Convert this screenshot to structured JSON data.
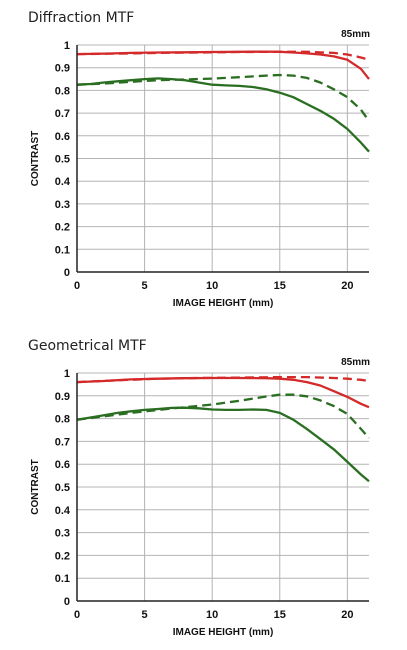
{
  "colors": {
    "sagittal_red": "#d42a2a",
    "meridional_green": "#2a6e22",
    "grid": "#b4b4b4",
    "frame": "#222222"
  },
  "chart_data": [
    {
      "type": "line",
      "title": "Diffraction MTF",
      "focal_length": "85mm",
      "xlabel": "IMAGE HEIGHT (mm)",
      "ylabel": "CONTRAST",
      "xlim": [
        0,
        21.6
      ],
      "ylim": [
        0,
        1
      ],
      "x_ticks": [
        "0",
        "5",
        "10",
        "15",
        "20"
      ],
      "y_ticks": [
        "0",
        "0.1",
        "0.2",
        "0.3",
        "0.4",
        "0.5",
        "0.6",
        "0.7",
        "0.8",
        "0.9",
        "1"
      ],
      "grid": true,
      "series": [
        {
          "color": "red",
          "style": "solid",
          "x": [
            0,
            2,
            4,
            6,
            8,
            10,
            12,
            14,
            15,
            16,
            17,
            18,
            19,
            20,
            21,
            21.6
          ],
          "y": [
            0.96,
            0.962,
            0.965,
            0.967,
            0.968,
            0.969,
            0.97,
            0.971,
            0.97,
            0.967,
            0.963,
            0.958,
            0.95,
            0.935,
            0.895,
            0.85
          ]
        },
        {
          "color": "red",
          "style": "dashed",
          "x": [
            0,
            3,
            6,
            9,
            12,
            15,
            17,
            19,
            20,
            21,
            21.6
          ],
          "y": [
            0.96,
            0.962,
            0.965,
            0.967,
            0.969,
            0.97,
            0.97,
            0.965,
            0.958,
            0.945,
            0.935
          ]
        },
        {
          "color": "green",
          "style": "solid",
          "x": [
            0,
            1,
            2,
            3,
            4,
            5,
            6,
            7,
            8,
            9,
            10,
            11,
            12,
            13,
            14,
            15,
            16,
            17,
            18,
            19,
            20,
            21,
            21.6
          ],
          "y": [
            0.825,
            0.828,
            0.835,
            0.84,
            0.845,
            0.85,
            0.853,
            0.85,
            0.845,
            0.835,
            0.825,
            0.822,
            0.82,
            0.815,
            0.805,
            0.79,
            0.77,
            0.74,
            0.71,
            0.675,
            0.63,
            0.57,
            0.53
          ]
        },
        {
          "color": "green",
          "style": "dashed",
          "x": [
            0,
            2,
            4,
            6,
            8,
            10,
            12,
            14,
            15,
            16,
            17,
            18,
            19,
            20,
            21,
            21.6
          ],
          "y": [
            0.825,
            0.83,
            0.838,
            0.845,
            0.848,
            0.852,
            0.858,
            0.865,
            0.868,
            0.865,
            0.855,
            0.835,
            0.805,
            0.77,
            0.715,
            0.665
          ]
        }
      ]
    },
    {
      "type": "line",
      "title": "Geometrical MTF",
      "focal_length": "85mm",
      "xlabel": "IMAGE HEIGHT (mm)",
      "ylabel": "CONTRAST",
      "xlim": [
        0,
        21.6
      ],
      "ylim": [
        0,
        1
      ],
      "x_ticks": [
        "0",
        "5",
        "10",
        "15",
        "20"
      ],
      "y_ticks": [
        "0",
        "0.1",
        "0.2",
        "0.3",
        "0.4",
        "0.5",
        "0.6",
        "0.7",
        "0.8",
        "0.9",
        "1"
      ],
      "grid": true,
      "series": [
        {
          "color": "red",
          "style": "solid",
          "x": [
            0,
            2,
            4,
            6,
            8,
            10,
            12,
            14,
            15,
            16,
            17,
            18,
            19,
            20,
            21,
            21.6
          ],
          "y": [
            0.96,
            0.965,
            0.972,
            0.975,
            0.977,
            0.978,
            0.978,
            0.977,
            0.975,
            0.97,
            0.96,
            0.945,
            0.92,
            0.895,
            0.865,
            0.85
          ]
        },
        {
          "color": "red",
          "style": "dashed",
          "x": [
            0,
            3,
            6,
            9,
            12,
            15,
            17,
            19,
            20,
            21,
            21.6
          ],
          "y": [
            0.96,
            0.968,
            0.975,
            0.978,
            0.98,
            0.982,
            0.982,
            0.978,
            0.975,
            0.97,
            0.965
          ]
        },
        {
          "color": "green",
          "style": "solid",
          "x": [
            0,
            1,
            2,
            3,
            4,
            5,
            6,
            7,
            8,
            9,
            10,
            11,
            12,
            13,
            14,
            15,
            16,
            17,
            18,
            19,
            20,
            21,
            21.6
          ],
          "y": [
            0.795,
            0.805,
            0.815,
            0.825,
            0.832,
            0.838,
            0.842,
            0.847,
            0.848,
            0.845,
            0.84,
            0.838,
            0.838,
            0.84,
            0.838,
            0.825,
            0.795,
            0.755,
            0.71,
            0.665,
            0.61,
            0.555,
            0.525
          ]
        },
        {
          "color": "green",
          "style": "dashed",
          "x": [
            0,
            2,
            4,
            6,
            8,
            10,
            12,
            14,
            15,
            16,
            17,
            18,
            19,
            20,
            21,
            21.6
          ],
          "y": [
            0.795,
            0.81,
            0.825,
            0.838,
            0.85,
            0.862,
            0.878,
            0.897,
            0.905,
            0.905,
            0.898,
            0.88,
            0.855,
            0.82,
            0.755,
            0.715
          ]
        }
      ]
    }
  ]
}
